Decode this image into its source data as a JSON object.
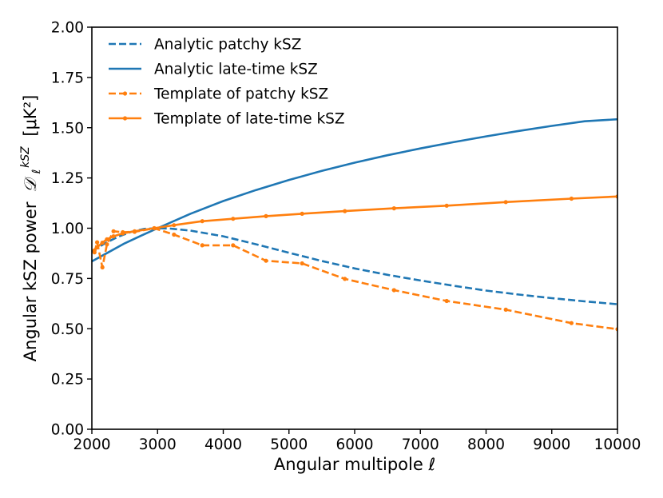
{
  "chart_data": {
    "type": "line",
    "title": "",
    "xlabel": "Angular multipole ℓ",
    "ylabel": "Angular kSZ power",
    "ylabel_symbol": "𝒟",
    "ylabel_sub": "ℓ",
    "ylabel_sup": "kSZ",
    "ylabel_unit": "[μK²]",
    "xlim": [
      2000,
      10000
    ],
    "ylim": [
      0.0,
      2.0
    ],
    "x_ticks": [
      2000,
      3000,
      4000,
      5000,
      6000,
      7000,
      8000,
      9000,
      10000
    ],
    "y_ticks": [
      "0.00",
      "0.25",
      "0.50",
      "0.75",
      "1.00",
      "1.25",
      "1.50",
      "1.75",
      "2.00"
    ],
    "grid": false,
    "legend_position": "top-left",
    "series": [
      {
        "name": "Analytic patchy kSZ",
        "color": "#1f77b4",
        "style": "dashed",
        "markers": false,
        "x": [
          2000,
          2200,
          2400,
          2600,
          2800,
          3000,
          3200,
          3500,
          4000,
          4500,
          5000,
          5500,
          6000,
          6500,
          7000,
          7500,
          8000,
          8500,
          9000,
          9500,
          10000
        ],
        "y": [
          0.885,
          0.925,
          0.958,
          0.982,
          0.997,
          1.0,
          0.998,
          0.988,
          0.96,
          0.92,
          0.878,
          0.837,
          0.8,
          0.768,
          0.74,
          0.714,
          0.69,
          0.67,
          0.652,
          0.636,
          0.622
        ]
      },
      {
        "name": "Analytic late-time kSZ",
        "color": "#1f77b4",
        "style": "solid",
        "markers": false,
        "x": [
          2000,
          2250,
          2500,
          2750,
          3000,
          3500,
          4000,
          4500,
          5000,
          5500,
          6000,
          6500,
          7000,
          7500,
          8000,
          8500,
          9000,
          9500,
          10000
        ],
        "y": [
          0.835,
          0.88,
          0.925,
          0.963,
          1.0,
          1.072,
          1.135,
          1.19,
          1.24,
          1.285,
          1.326,
          1.363,
          1.397,
          1.428,
          1.457,
          1.484,
          1.509,
          1.532,
          1.542
        ]
      },
      {
        "name": "Template of patchy kSZ",
        "color": "#ff7f0e",
        "style": "dashed",
        "markers": true,
        "x": [
          2040,
          2080,
          2160,
          2230,
          2330,
          2470,
          2650,
          2950,
          3250,
          3680,
          4150,
          4650,
          5200,
          5850,
          6600,
          7400,
          8300,
          9300,
          10000
        ],
        "y": [
          0.88,
          0.93,
          0.805,
          0.92,
          0.985,
          0.98,
          0.982,
          1.0,
          0.968,
          0.915,
          0.915,
          0.838,
          0.825,
          0.748,
          0.692,
          0.638,
          0.595,
          0.528,
          0.498
        ]
      },
      {
        "name": "Template of late-time kSZ",
        "color": "#ff7f0e",
        "style": "solid",
        "markers": true,
        "x": [
          2040,
          2080,
          2160,
          2230,
          2330,
          2470,
          2650,
          2950,
          3250,
          3680,
          4150,
          4650,
          5200,
          5850,
          6600,
          7400,
          8300,
          9300,
          10000
        ],
        "y": [
          0.89,
          0.905,
          0.928,
          0.945,
          0.96,
          0.974,
          0.985,
          1.0,
          1.015,
          1.035,
          1.047,
          1.06,
          1.072,
          1.085,
          1.099,
          1.112,
          1.13,
          1.147,
          1.158
        ]
      }
    ]
  }
}
